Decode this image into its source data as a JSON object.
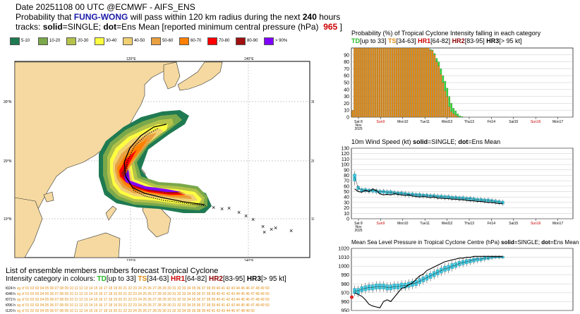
{
  "header": {
    "date_line": "Date 20251108 00 UTC   @ECMWF - AIFS_ENS",
    "prob_prefix": "Probability that",
    "storm_name": "FUNG-WONG",
    "prob_middle": "will pass within 120 km radius during the next",
    "hours": "240",
    "hours_suffix": "hours",
    "tracks_prefix": "tracks:",
    "solid": "solid",
    "solid_text": "=SINGLE;",
    "dot": "dot",
    "dot_text": "=Ens Mean [reported minimum central pressure (hPa)",
    "pressure": "965",
    "pressure_suffix": "]"
  },
  "legend": {
    "items": [
      {
        "label": "5-10",
        "color": "#1f7a52"
      },
      {
        "label": "10-20",
        "color": "#7aa84a"
      },
      {
        "label": "20-30",
        "color": "#b4c24a"
      },
      {
        "label": "30-40",
        "color": "#ffff40"
      },
      {
        "label": "40-50",
        "color": "#f0d070"
      },
      {
        "label": "50-60",
        "color": "#e8a040"
      },
      {
        "label": "60-70",
        "color": "#ff8000"
      },
      {
        "label": "70-80",
        "color": "#ff0000"
      },
      {
        "label": "80-90",
        "color": "#a01010"
      },
      {
        "label": "> 90%",
        "color": "#8000ff"
      }
    ]
  },
  "map": {
    "lon_labels": [
      "120°E",
      "140°E"
    ],
    "lat_labels": [
      "30°N",
      "20°N",
      "10°N"
    ]
  },
  "members_section": {
    "title": "List of ensemble members numbers forecast Tropical Cyclone",
    "subtitle_prefix": "Intensity category in colours:",
    "td": "TD",
    "td_range": "[up to 33]",
    "ts": "TS",
    "ts_range": "[34-63]",
    "hr1": "HR1",
    "hr1_range": "[64-82]",
    "hr2": "HR2",
    "hr2_range": "[83-95]",
    "hr3": "HR3",
    "hr3_range": "[> 95 kt]",
    "rows": [
      {
        "label": "t024 h",
        "text": "sg cf 01 02 03 04 05 06 07 08 09 10 11 12 13 14 15 16 17 18 19 20 21 22 23 24 25 26 27 28 29 30 31 32 33 34 35 36 37 38 39 40 41 42 43 44 45 46 47 48 49 50"
      },
      {
        "label": "t048 h",
        "text": "sg cf 01 02 03 04 05 06 07 08 09 10 11 12 13 14 15 16 17 18 19 20 21 22 23 24 25 26 27 28 29 30 31 32 33 34 35 36 37 38 39 40 41 42 43 44 45 46 47 48 49 50"
      },
      {
        "label": "t072 h",
        "text": "sg cf 01 02 03 04 05 06 07 08 09 10 11 12 13 14 15 16 17 18 19 20 21 22 23 24 25 26 27 28 29 30 31 32 33 34 35 36 37 38 39 40 41 42 43 44 45 46 47 48 49 50"
      },
      {
        "label": "t096 h",
        "text": "sg cf 01 02 03 04 05 06 07 08 09 10 11 12 13 14 15 16 17 18 19 20 21 22 23 24 25 26 27 28 29 30 31 32 33 34 35 36 37 38 39 40 41 42 43 44 45 46 47 48 49 50"
      },
      {
        "label": "t120 h",
        "text": "sg cf 01 02 03 04 05 06 07 08 09 10 11 12 14 15 16 17 18 19 20 21 22 23 24 25 26 27 28 29 30 31 32 33 34 35 36 38 39 40 41 42 43 44 46 47 48 49 50"
      }
    ]
  },
  "chart_data": [
    {
      "type": "bar",
      "title": "Probability (%) of Tropical Cyclone Intensity falling in each category",
      "ylim": [
        0,
        100
      ],
      "yticks": [
        0,
        10,
        20,
        30,
        40,
        50,
        60,
        70,
        80,
        90
      ],
      "x_ticks": [
        "Sat 8 Nov 2025",
        "Sun9",
        "Mon10",
        "Tue11",
        "Wed12",
        "Thu13",
        "Fri14",
        "Sat15",
        "Sun16",
        "Mon17"
      ],
      "weekend_ticks": [
        "Sun9",
        "Sun16"
      ],
      "series": [
        {
          "name": "TD",
          "color": "#33dd33",
          "values": [
            0,
            0,
            0,
            0,
            0,
            0,
            0,
            0,
            0,
            0,
            0,
            0,
            0,
            0,
            0,
            0,
            0,
            0,
            0,
            0,
            0,
            0,
            0,
            0,
            0,
            0,
            0,
            0,
            0,
            0,
            0,
            0,
            0,
            0,
            0,
            0,
            0,
            1,
            1,
            2,
            5,
            6,
            8,
            10,
            14,
            12,
            15,
            12,
            8,
            6,
            4,
            2,
            1,
            0,
            0,
            0,
            0,
            0,
            0,
            0,
            0,
            0,
            0
          ]
        },
        {
          "name": "TS",
          "color": "#e08a10",
          "values": [
            10,
            100,
            100,
            100,
            100,
            100,
            100,
            100,
            100,
            100,
            100,
            100,
            100,
            100,
            100,
            100,
            100,
            100,
            100,
            100,
            100,
            100,
            100,
            100,
            100,
            100,
            100,
            100,
            100,
            100,
            100,
            100,
            100,
            100,
            100,
            100,
            100,
            97,
            96,
            90,
            80,
            74,
            62,
            50,
            38,
            30,
            15,
            8,
            5,
            3,
            1,
            0,
            0,
            0,
            0,
            0,
            0,
            0,
            0,
            0,
            0,
            0,
            0
          ]
        }
      ]
    },
    {
      "type": "line",
      "title": "10m Wind Speed (kt)",
      "title_suffix": "=SINGLE;",
      "title_dot_suffix": "=Ens Mean",
      "ylim": [
        0,
        130
      ],
      "yticks": [
        0,
        10,
        20,
        30,
        40,
        50,
        60,
        70,
        80,
        90,
        100,
        110,
        120,
        130
      ],
      "x_ticks": [
        "Sat 8 Nov 2025",
        "Sun9",
        "Mon10",
        "Tue11",
        "Wed12",
        "Thu13",
        "Fri14",
        "Sat15",
        "Sun16",
        "Mon17"
      ],
      "weekend_ticks": [
        "Sun9",
        "Sun16"
      ],
      "box_median": [
        77,
        57,
        53,
        53,
        52,
        52,
        51,
        50,
        50,
        49,
        49,
        48,
        47,
        47,
        46,
        45,
        45,
        44,
        44,
        43,
        43,
        42,
        42,
        41,
        41,
        40,
        40,
        39,
        39,
        38,
        38,
        37,
        37,
        36,
        35,
        35,
        34,
        34,
        33,
        32,
        31,
        30
      ],
      "box_low": [
        62,
        50,
        47,
        47,
        46,
        46,
        45,
        44,
        44,
        43,
        43,
        42,
        41,
        41,
        40,
        39,
        39,
        38,
        38,
        37,
        37,
        36,
        36,
        35,
        35,
        34,
        34,
        33,
        33,
        32,
        32,
        31,
        31,
        30,
        29,
        29,
        28,
        28,
        27,
        26,
        25,
        24
      ],
      "box_high": [
        88,
        62,
        58,
        58,
        57,
        57,
        56,
        55,
        55,
        54,
        54,
        53,
        52,
        52,
        51,
        50,
        50,
        49,
        49,
        48,
        48,
        47,
        47,
        46,
        46,
        45,
        45,
        44,
        44,
        43,
        43,
        42,
        42,
        41,
        40,
        40,
        39,
        39,
        38,
        37,
        36,
        35
      ],
      "single": [
        55,
        50,
        49,
        52,
        50,
        55,
        52,
        46,
        44,
        45,
        44,
        46,
        45,
        44,
        43,
        44,
        42,
        41,
        40,
        41,
        40,
        39,
        40,
        38,
        38,
        37,
        37,
        36,
        36,
        35,
        35,
        34,
        33,
        33,
        32,
        32,
        31,
        30,
        30,
        29,
        28,
        28
      ]
    },
    {
      "type": "line",
      "title": "Mean Sea Level Pressure in Tropical Cyclone Centre (hPa)",
      "title_suffix": "=SINGLE;",
      "title_dot_suffix": "=Ens Mean",
      "ylim": [
        950,
        1020
      ],
      "yticks": [
        950,
        960,
        970,
        980,
        990,
        1000,
        1010,
        1020
      ],
      "observed": 965,
      "box_median": [
        972,
        972,
        974,
        975,
        976,
        976,
        977,
        977,
        977,
        976,
        976,
        977,
        977,
        978,
        978,
        979,
        980,
        981,
        983,
        985,
        987,
        989,
        991,
        993,
        995,
        997,
        998,
        1000,
        1001,
        1003,
        1004,
        1005,
        1006,
        1007,
        1008,
        1008,
        1009,
        1009,
        1010,
        1010,
        1010,
        1010
      ],
      "box_low": [
        966,
        965,
        968,
        969,
        970,
        970,
        971,
        971,
        971,
        970,
        970,
        971,
        971,
        972,
        972,
        973,
        974,
        975,
        977,
        979,
        981,
        983,
        985,
        987,
        989,
        991,
        992,
        994,
        996,
        998,
        999,
        1000,
        1001,
        1002,
        1003,
        1004,
        1005,
        1006,
        1007,
        1008,
        1008,
        1008
      ],
      "box_high": [
        978,
        978,
        980,
        981,
        982,
        982,
        983,
        983,
        983,
        982,
        982,
        983,
        983,
        984,
        984,
        985,
        986,
        987,
        989,
        991,
        993,
        995,
        997,
        999,
        1001,
        1003,
        1004,
        1006,
        1007,
        1008,
        1009,
        1010,
        1010,
        1011,
        1011,
        1011,
        1012,
        1012,
        1012,
        1012,
        1012,
        1012
      ],
      "single": [
        970,
        968,
        966,
        962,
        957,
        955,
        954,
        953,
        960,
        962,
        960,
        965,
        970,
        975,
        976,
        979,
        981,
        985,
        989,
        991,
        995,
        997,
        999,
        1001,
        1003,
        1005,
        1006,
        1007,
        1008,
        1009,
        1009,
        1010,
        1010,
        1011,
        1011,
        1011,
        1011,
        1011,
        1011,
        1011,
        1011,
        1011
      ]
    }
  ]
}
